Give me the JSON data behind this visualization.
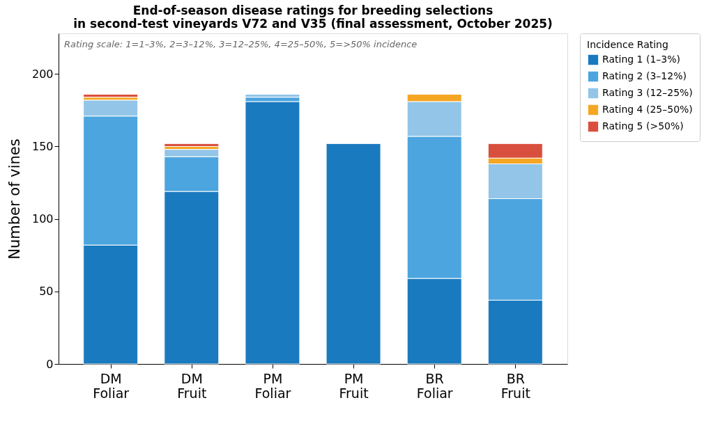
{
  "chart_data": {
    "type": "bar",
    "stacked": true,
    "title": "End-of-season disease ratings for breeding selections\nin second-test vineyards V72 and V35 (final assessment, October 2025)",
    "ylabel": "Number of vines",
    "legend_title": "Incidence Rating",
    "annotations": [
      "Rating scale: 1=1–3%, 2=3–12%, 3=12–25%, 4=25–50%, 5=>50% incidence"
    ],
    "categories": [
      "DM\nFoliar",
      "DM\nFruit",
      "PM\nFoliar",
      "PM\nFruit",
      "BR\nFoliar",
      "BR\nFruit"
    ],
    "series": [
      {
        "name": "Rating 1 (1–3%)",
        "color": "#1a7abf",
        "values": [
          82,
          119,
          181,
          152,
          59,
          44
        ]
      },
      {
        "name": "Rating 2 (3–12%)",
        "color": "#4ca5df",
        "values": [
          89,
          24,
          3,
          0,
          98,
          70
        ]
      },
      {
        "name": "Rating 3 (12–25%)",
        "color": "#92c5e8",
        "values": [
          11,
          5,
          2,
          0,
          24,
          24
        ]
      },
      {
        "name": "Rating 4 (25–50%)",
        "color": "#f5a623",
        "values": [
          2,
          2,
          0,
          0,
          5,
          4
        ]
      },
      {
        "name": "Rating 5 (>50%)",
        "color": "#d94f3d",
        "values": [
          2,
          2,
          0,
          0,
          0,
          10
        ]
      }
    ],
    "ylim": [
      0,
      228
    ],
    "yticks": [
      0,
      50,
      100,
      150,
      200
    ],
    "grid": false,
    "legend": "right"
  }
}
